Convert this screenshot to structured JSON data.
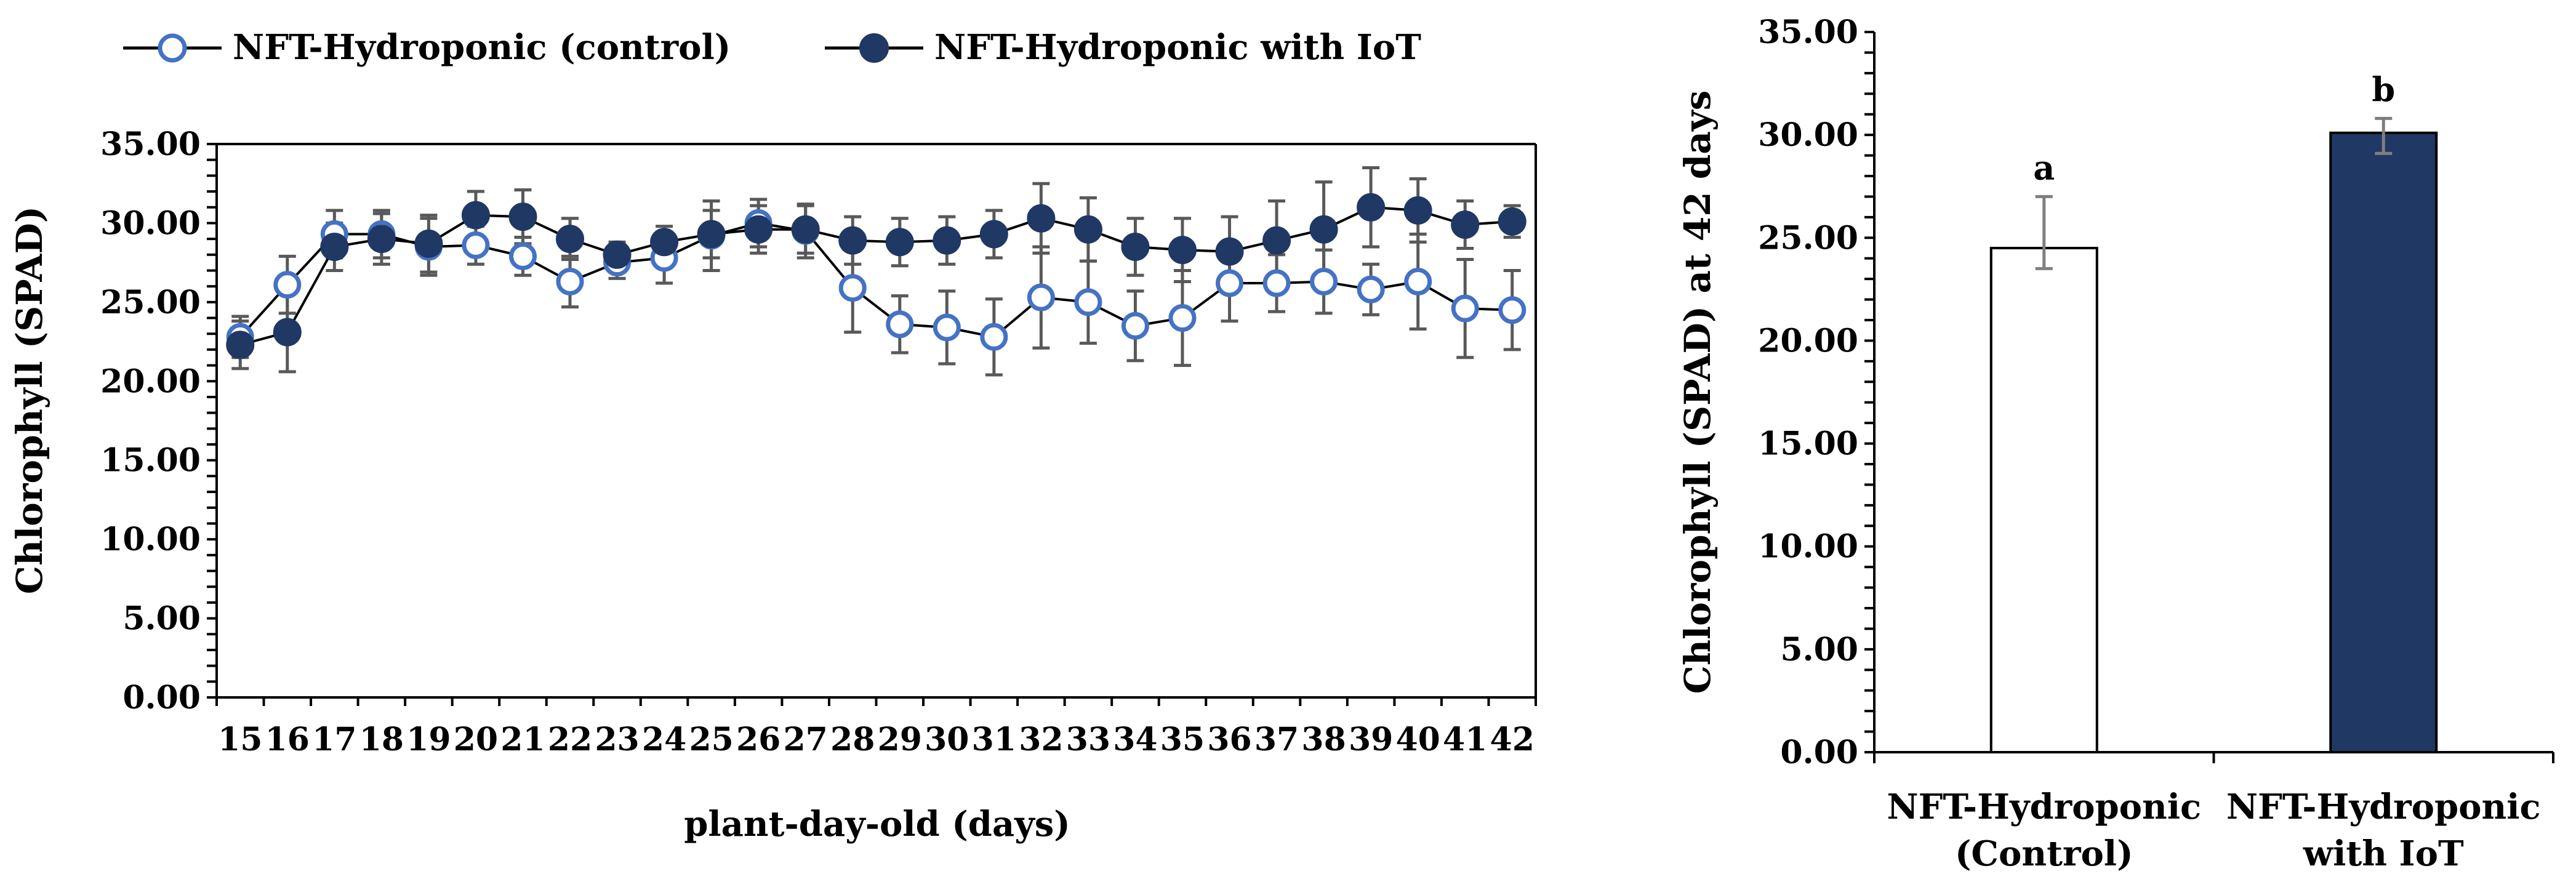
{
  "chart_data": [
    {
      "type": "line",
      "title": "",
      "xlabel": "plant-day-old (days)",
      "ylabel": "Chlorophyll (SPAD)",
      "ylim": [
        0,
        35
      ],
      "ytick_labels": [
        "0.00",
        "5.00",
        "10.00",
        "15.00",
        "20.00",
        "25.00",
        "30.00",
        "35.00"
      ],
      "x": [
        15,
        16,
        17,
        18,
        19,
        20,
        21,
        22,
        23,
        24,
        25,
        26,
        27,
        28,
        29,
        30,
        31,
        32,
        33,
        34,
        35,
        36,
        37,
        38,
        39,
        40,
        41,
        42
      ],
      "legend_position": "top",
      "series": [
        {
          "name": "NFT-Hydroponic (control)",
          "marker": "open-circle",
          "color": "#4472C4",
          "values": [
            22.8,
            26.1,
            29.3,
            29.3,
            28.5,
            28.6,
            27.9,
            26.3,
            27.5,
            27.8,
            29.2,
            30.0,
            29.5,
            25.9,
            23.6,
            23.4,
            22.8,
            25.3,
            25.0,
            23.5,
            24.0,
            26.2,
            26.2,
            26.3,
            25.8,
            26.3,
            24.6,
            24.5
          ],
          "errors": [
            1.3,
            1.8,
            1.5,
            1.5,
            1.8,
            1.2,
            1.2,
            1.6,
            1.0,
            1.6,
            2.2,
            1.5,
            1.7,
            2.8,
            1.8,
            2.3,
            2.4,
            3.2,
            2.6,
            2.2,
            3.0,
            2.4,
            1.8,
            2.0,
            1.6,
            3.0,
            3.1,
            2.5
          ]
        },
        {
          "name": "NFT-Hydroponic with IoT",
          "marker": "filled-circle",
          "color": "#1F3864",
          "values": [
            22.3,
            23.1,
            28.5,
            29.0,
            28.7,
            30.5,
            30.4,
            29.0,
            28.0,
            28.8,
            29.3,
            29.6,
            29.6,
            28.9,
            28.8,
            28.9,
            29.3,
            30.3,
            29.6,
            28.5,
            28.3,
            28.2,
            28.9,
            29.6,
            31.0,
            30.8,
            29.9,
            30.1
          ],
          "errors": [
            1.5,
            2.5,
            1.5,
            1.6,
            1.8,
            1.5,
            1.7,
            1.3,
            0.8,
            1.0,
            1.5,
            1.5,
            1.5,
            1.5,
            1.5,
            1.5,
            1.5,
            2.2,
            2.0,
            1.8,
            2.0,
            2.2,
            2.5,
            3.0,
            2.5,
            2.0,
            1.5,
            1.0
          ]
        }
      ]
    },
    {
      "type": "bar",
      "title": "",
      "xlabel": "",
      "ylabel": "Chlorophyll (SPAD) at 42 days",
      "ylim": [
        0,
        35
      ],
      "ytick_labels": [
        "0.00",
        "5.00",
        "10.00",
        "15.00",
        "20.00",
        "25.00",
        "30.00",
        "35.00"
      ],
      "categories": [
        [
          "NFT-Hydroponic",
          "(Control)"
        ],
        [
          "NFT-Hydroponic",
          "with IoT"
        ]
      ],
      "values": [
        24.5,
        30.1
      ],
      "errors_low": [
        1.0,
        1.0
      ],
      "errors_high": [
        2.5,
        0.7
      ],
      "significance_labels": [
        "a",
        "b"
      ],
      "colors": [
        "#FFFFFF",
        "#203864"
      ]
    }
  ]
}
